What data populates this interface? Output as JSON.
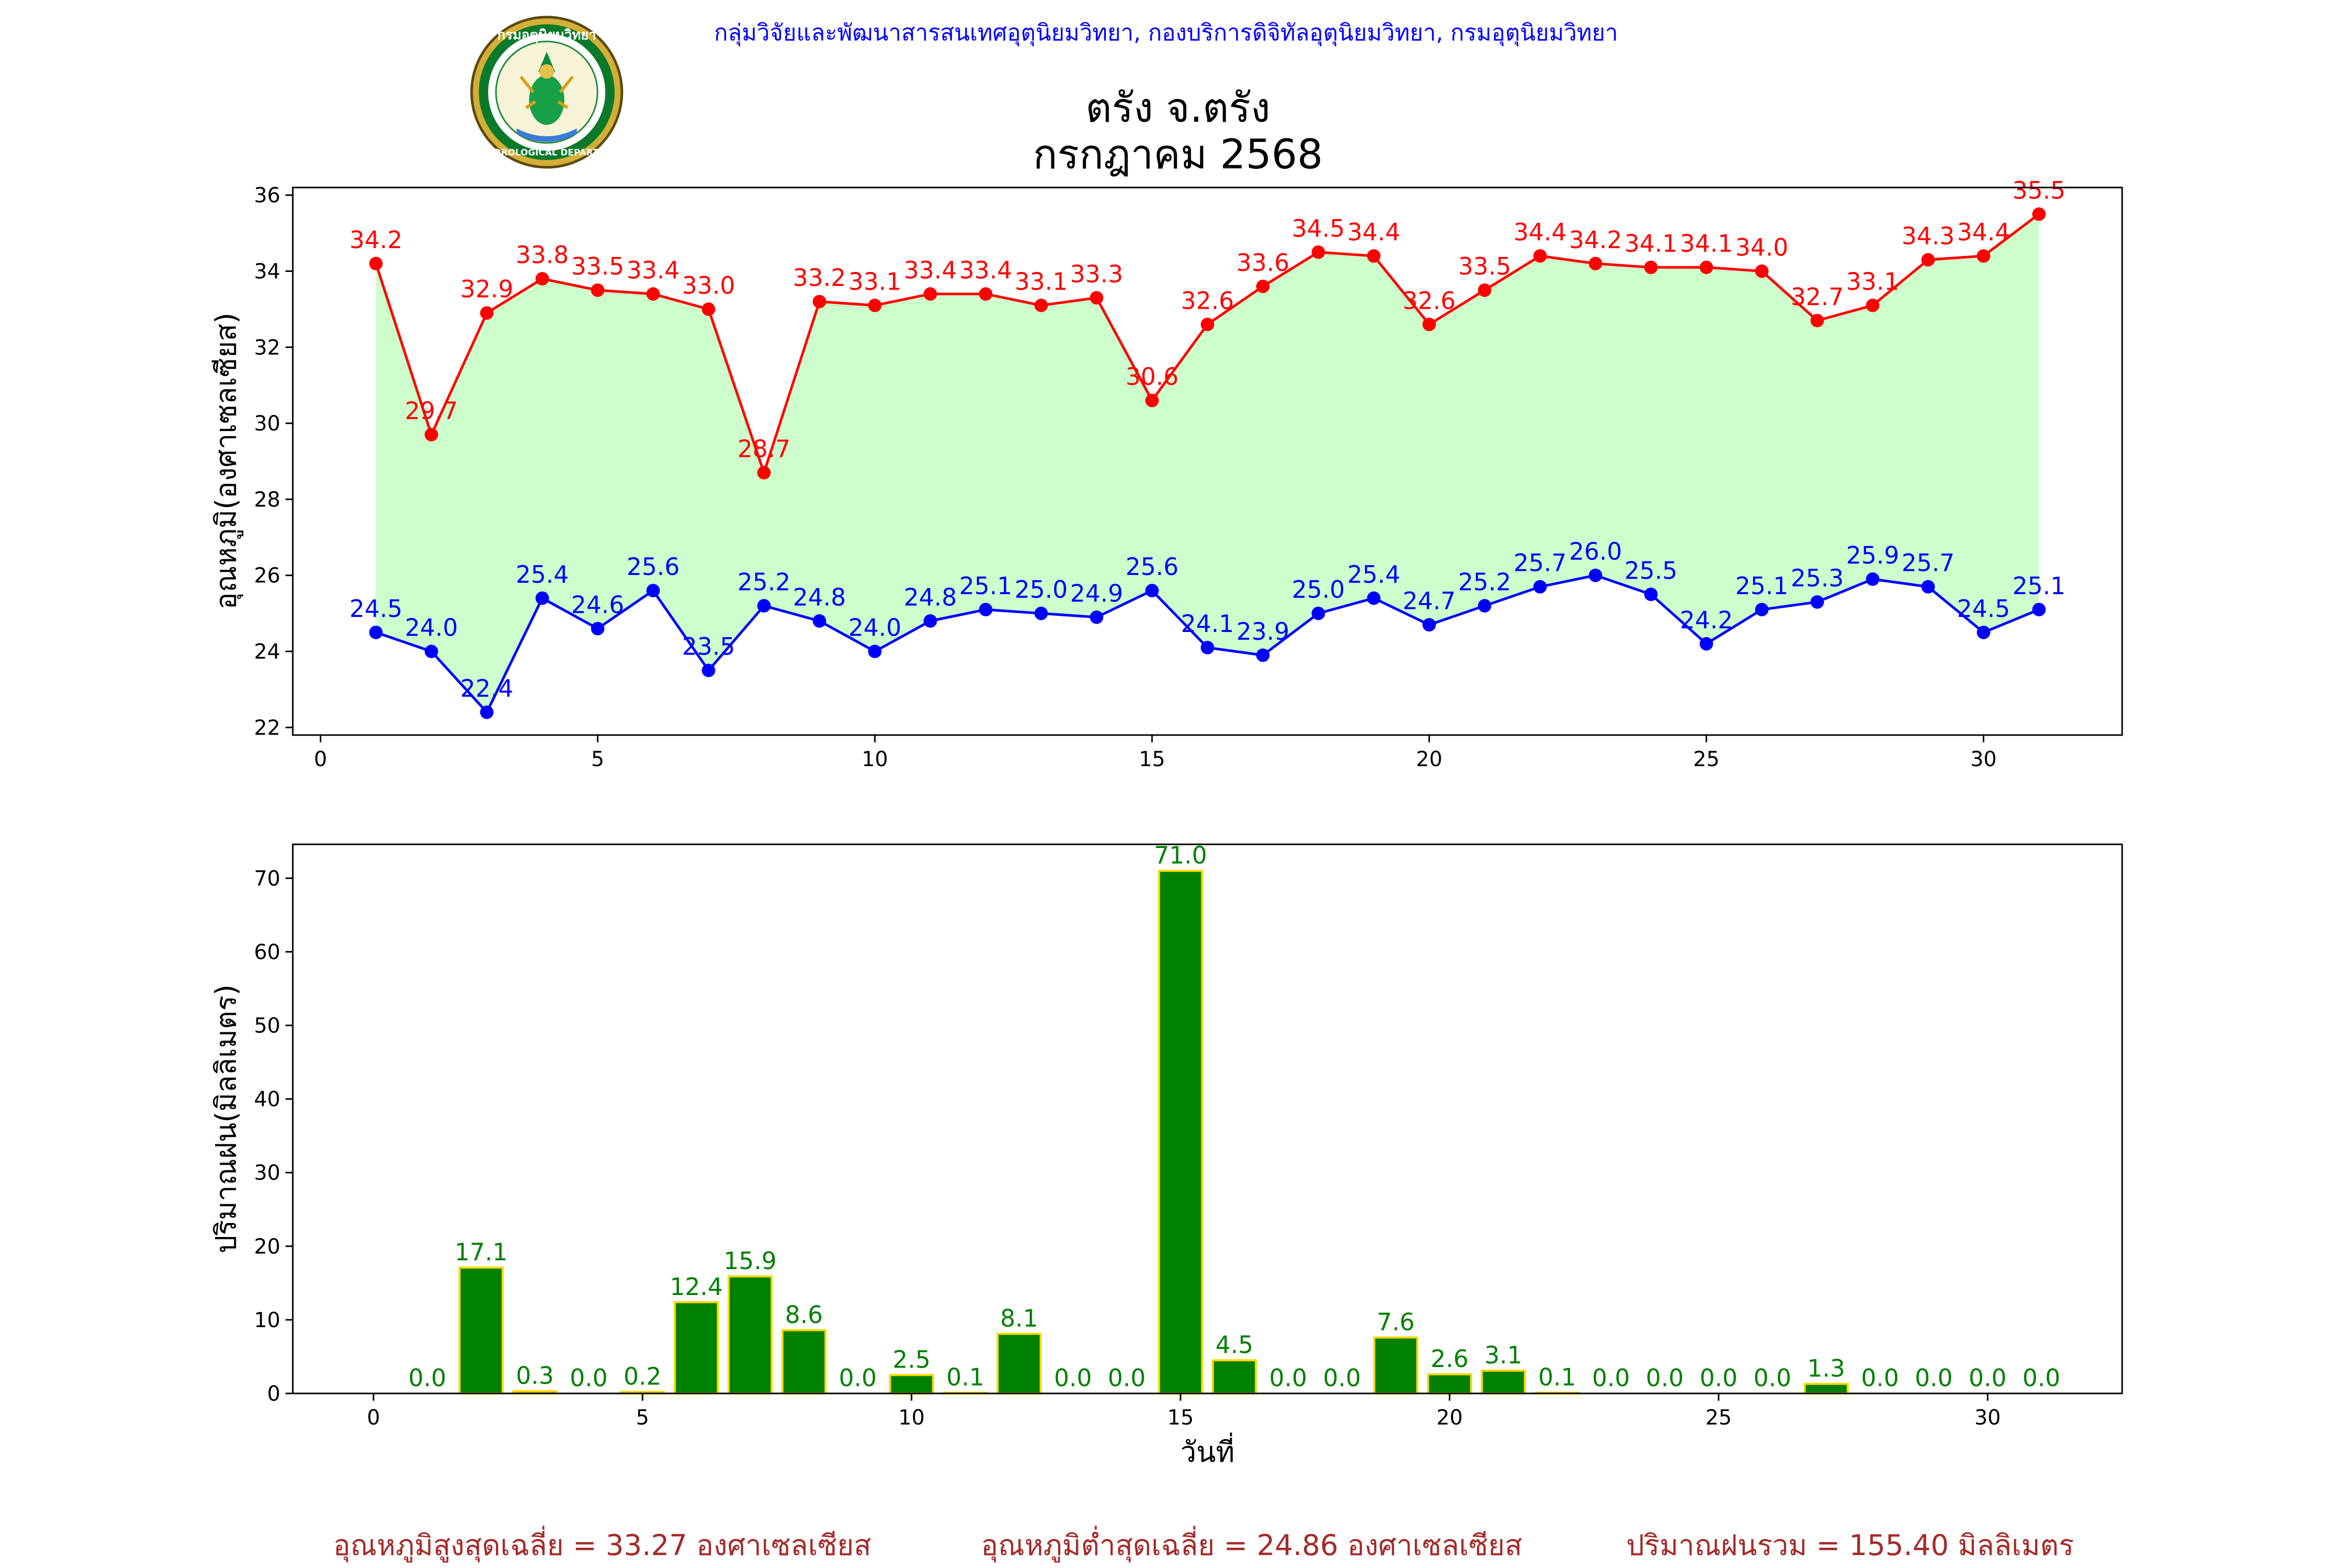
{
  "header": {
    "department": "กลุ่มวิจัยและพัฒนาสารสนเทศอุตุนิยมวิทยา, กองบริการดิจิทัลอุตุนิยมวิทยา, กรมอุตุนิยมวิทยา",
    "logo_text": "กรมอุตุนิยมวิทยา",
    "logo_ring_text": "METEOROLOGICAL DEPARTMENT"
  },
  "colors": {
    "max": "#ff0000",
    "min": "#0000ff",
    "fill": "#ccffcc",
    "bar": "#008000",
    "bar_edge": "#ffd700",
    "footer": "#a52a2a",
    "header": "#0000ff"
  },
  "chart_data": [
    {
      "type": "line",
      "title": "ตรัง จ.ตรัง",
      "subtitle": "กรกฎาคม 2568",
      "xlabel": "",
      "ylabel": "อุณหภูมิ(องศาเซลเซียส)",
      "xlim": [
        -0.5,
        32.5
      ],
      "ylim": [
        21.8,
        36.2
      ],
      "x_ticks": [
        0,
        5,
        10,
        15,
        20,
        25,
        30
      ],
      "y_ticks": [
        22,
        24,
        26,
        28,
        30,
        32,
        34,
        36
      ],
      "grid": false,
      "fill_between": true,
      "x": [
        1,
        2,
        3,
        4,
        5,
        6,
        7,
        8,
        9,
        10,
        11,
        12,
        13,
        14,
        15,
        16,
        17,
        18,
        19,
        20,
        21,
        22,
        23,
        24,
        25,
        26,
        27,
        28,
        29,
        30,
        31
      ],
      "series": [
        {
          "key": "max",
          "values": [
            34.2,
            29.7,
            32.9,
            33.8,
            33.5,
            33.4,
            33.0,
            28.7,
            33.2,
            33.1,
            33.4,
            33.4,
            33.1,
            33.3,
            30.6,
            32.6,
            33.6,
            34.5,
            34.4,
            32.6,
            33.5,
            34.4,
            34.2,
            34.1,
            34.1,
            34.0,
            32.7,
            33.1,
            34.3,
            34.4,
            35.5
          ]
        },
        {
          "key": "min",
          "values": [
            24.5,
            24.0,
            22.4,
            25.4,
            24.6,
            25.6,
            23.5,
            25.2,
            24.8,
            24.0,
            24.8,
            25.1,
            25.0,
            24.9,
            25.6,
            24.1,
            23.9,
            25.0,
            25.4,
            24.7,
            25.2,
            25.7,
            26.0,
            25.5,
            24.2,
            25.1,
            25.3,
            25.9,
            25.7,
            24.5,
            25.1
          ]
        }
      ]
    },
    {
      "type": "bar",
      "xlabel": "วันที่",
      "ylabel": "ปริมาณฝน(มิลลิเมตร)",
      "xlim": [
        -1.5,
        32.5
      ],
      "ylim": [
        0,
        74.6
      ],
      "x_ticks": [
        0,
        5,
        10,
        15,
        20,
        25,
        30
      ],
      "y_ticks": [
        0,
        10,
        20,
        30,
        40,
        50,
        60,
        70
      ],
      "grid": false,
      "x": [
        1,
        2,
        3,
        4,
        5,
        6,
        7,
        8,
        9,
        10,
        11,
        12,
        13,
        14,
        15,
        16,
        17,
        18,
        19,
        20,
        21,
        22,
        23,
        24,
        25,
        26,
        27,
        28,
        29,
        30,
        31
      ],
      "values": [
        0.0,
        17.1,
        0.3,
        0.0,
        0.2,
        12.4,
        15.9,
        8.6,
        0.0,
        2.5,
        0.1,
        8.1,
        0.0,
        0.0,
        71.0,
        4.5,
        0.0,
        0.0,
        7.6,
        2.6,
        3.1,
        0.1,
        0.0,
        0.0,
        0.0,
        0.0,
        1.3,
        0.0,
        0.0,
        0.0,
        0.0
      ]
    }
  ],
  "footer": {
    "avg_max": "อุณหภูมิสูงสุดเฉลี่ย = 33.27 องศาเซลเซียส",
    "avg_min": "อุณหภูมิต่ำสุดเฉลี่ย = 24.86 องศาเซลเซียส",
    "total_rain": "ปริมาณฝนรวม = 155.40 มิลลิเมตร"
  }
}
